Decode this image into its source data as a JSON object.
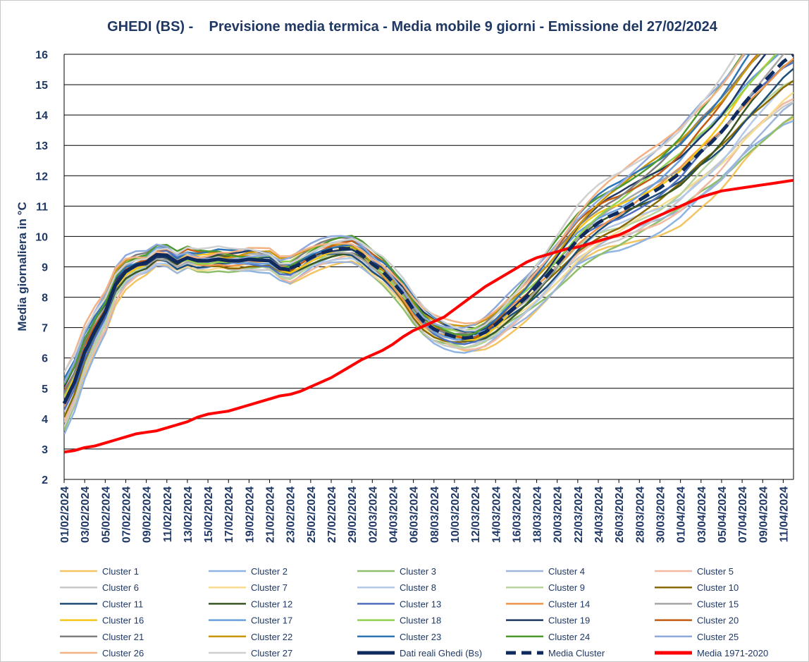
{
  "chart_data": {
    "type": "line",
    "title": "GHEDI (BS) -    Previsione media termica - Media mobile 9 giorni - Emissione del 27/02/2024",
    "ylabel": "Media giornaliera in °C",
    "xlabel": "",
    "ylim": [
      2,
      16
    ],
    "yticks": [
      2,
      3,
      4,
      5,
      6,
      7,
      8,
      9,
      10,
      11,
      12,
      13,
      14,
      15,
      16
    ],
    "grid": "horizontal",
    "legend_placement": "bottom",
    "x_start": "01/02/2024",
    "x_end": "12/04/2024",
    "x_tick_labels": [
      "01/02/2024",
      "03/02/2024",
      "05/02/2024",
      "07/02/2024",
      "09/02/2024",
      "11/02/2024",
      "13/02/2024",
      "15/02/2024",
      "17/02/2024",
      "19/02/2024",
      "21/02/2024",
      "23/02/2024",
      "25/02/2024",
      "27/02/2024",
      "29/02/2024",
      "02/03/2024",
      "04/03/2024",
      "06/03/2024",
      "08/03/2024",
      "10/03/2024",
      "12/03/2024",
      "14/03/2024",
      "16/03/2024",
      "18/03/2024",
      "20/03/2024",
      "22/03/2024",
      "24/03/2024",
      "26/03/2024",
      "28/03/2024",
      "30/03/2024",
      "01/04/2024",
      "03/04/2024",
      "05/04/2024",
      "07/04/2024",
      "09/04/2024",
      "11/04/2024"
    ],
    "observed": {
      "name": "Dati reali Ghedi (Bs)",
      "color": "#0f2a5c",
      "x": [
        "01/02/2024",
        "02/02/2024",
        "03/02/2024",
        "04/02/2024",
        "05/02/2024",
        "06/02/2024",
        "07/02/2024",
        "08/02/2024",
        "09/02/2024",
        "10/02/2024",
        "11/02/2024",
        "12/02/2024",
        "13/02/2024",
        "14/02/2024",
        "15/02/2024",
        "16/02/2024",
        "17/02/2024",
        "18/02/2024",
        "19/02/2024",
        "20/02/2024",
        "21/02/2024",
        "22/02/2024",
        "23/02/2024"
      ],
      "values": [
        4.5,
        5.2,
        6.2,
        6.9,
        7.5,
        8.4,
        8.85,
        9.05,
        9.15,
        9.4,
        9.38,
        9.15,
        9.3,
        9.2,
        9.2,
        9.25,
        9.2,
        9.2,
        9.25,
        9.22,
        9.2,
        8.95,
        8.9
      ]
    },
    "series": [
      {
        "name": "Media Cluster",
        "color": "#0f2a5c",
        "style": "dashed",
        "x": [
          "23/02/2024",
          "24/02/2024",
          "25/02/2024",
          "26/02/2024",
          "27/02/2024",
          "28/02/2024",
          "29/02/2024",
          "01/03/2024",
          "02/03/2024",
          "03/03/2024",
          "04/03/2024",
          "05/03/2024",
          "06/03/2024",
          "07/03/2024",
          "08/03/2024",
          "09/03/2024",
          "10/03/2024",
          "11/03/2024",
          "12/03/2024",
          "13/03/2024",
          "14/03/2024",
          "15/03/2024",
          "16/03/2024",
          "17/03/2024",
          "18/03/2024",
          "19/03/2024",
          "20/03/2024",
          "21/03/2024",
          "22/03/2024",
          "23/03/2024",
          "24/03/2024",
          "25/03/2024",
          "26/03/2024",
          "27/03/2024",
          "28/03/2024",
          "29/03/2024",
          "30/03/2024",
          "31/03/2024",
          "01/04/2024",
          "02/04/2024",
          "03/04/2024",
          "04/04/2024",
          "05/04/2024",
          "06/04/2024",
          "07/04/2024",
          "08/04/2024",
          "09/04/2024",
          "10/04/2024",
          "11/04/2024",
          "12/04/2024"
        ],
        "values": [
          8.95,
          9.1,
          9.3,
          9.45,
          9.55,
          9.6,
          9.6,
          9.4,
          9.1,
          8.85,
          8.5,
          8.1,
          7.6,
          7.2,
          6.95,
          6.8,
          6.7,
          6.65,
          6.7,
          6.85,
          7.1,
          7.4,
          7.7,
          8.0,
          8.35,
          8.7,
          9.1,
          9.5,
          9.9,
          10.2,
          10.45,
          10.65,
          10.8,
          11.0,
          11.2,
          11.4,
          11.6,
          11.85,
          12.1,
          12.45,
          12.8,
          13.1,
          13.45,
          13.85,
          14.3,
          14.7,
          15.05,
          15.4,
          15.75,
          16.0
        ]
      },
      {
        "name": "Media 1971-2020",
        "color": "#ff0000",
        "style": "solid",
        "x": [
          "01/02/2024",
          "02/02/2024",
          "03/02/2024",
          "04/02/2024",
          "05/02/2024",
          "06/02/2024",
          "07/02/2024",
          "08/02/2024",
          "09/02/2024",
          "10/02/2024",
          "11/02/2024",
          "12/02/2024",
          "13/02/2024",
          "14/02/2024",
          "15/02/2024",
          "16/02/2024",
          "17/02/2024",
          "18/02/2024",
          "19/02/2024",
          "20/02/2024",
          "21/02/2024",
          "22/02/2024",
          "23/02/2024",
          "24/02/2024",
          "25/02/2024",
          "26/02/2024",
          "27/02/2024",
          "28/02/2024",
          "29/02/2024",
          "01/03/2024",
          "02/03/2024",
          "03/03/2024",
          "04/03/2024",
          "05/03/2024",
          "06/03/2024",
          "07/03/2024",
          "08/03/2024",
          "09/03/2024",
          "10/03/2024",
          "11/03/2024",
          "12/03/2024",
          "13/03/2024",
          "14/03/2024",
          "15/03/2024",
          "16/03/2024",
          "17/03/2024",
          "18/03/2024",
          "19/03/2024",
          "20/03/2024",
          "21/03/2024",
          "22/03/2024",
          "23/03/2024",
          "24/03/2024",
          "25/03/2024",
          "26/03/2024",
          "27/03/2024",
          "28/03/2024",
          "29/03/2024",
          "30/03/2024",
          "31/03/2024",
          "01/04/2024",
          "02/04/2024",
          "03/04/2024",
          "04/04/2024",
          "05/04/2024",
          "06/04/2024",
          "07/04/2024",
          "08/04/2024",
          "09/04/2024",
          "10/04/2024",
          "11/04/2024",
          "12/04/2024"
        ],
        "values": [
          2.9,
          2.95,
          3.05,
          3.1,
          3.2,
          3.3,
          3.4,
          3.5,
          3.55,
          3.6,
          3.7,
          3.8,
          3.9,
          4.05,
          4.15,
          4.2,
          4.25,
          4.35,
          4.45,
          4.55,
          4.65,
          4.75,
          4.8,
          4.9,
          5.05,
          5.2,
          5.35,
          5.55,
          5.75,
          5.95,
          6.1,
          6.25,
          6.45,
          6.7,
          6.9,
          7.05,
          7.2,
          7.35,
          7.6,
          7.85,
          8.1,
          8.35,
          8.55,
          8.75,
          8.95,
          9.15,
          9.3,
          9.4,
          9.5,
          9.6,
          9.65,
          9.75,
          9.85,
          9.95,
          10.05,
          10.2,
          10.4,
          10.55,
          10.7,
          10.85,
          11.0,
          11.15,
          11.3,
          11.4,
          11.5,
          11.55,
          11.6,
          11.65,
          11.7,
          11.75,
          11.8,
          11.85
        ]
      }
    ],
    "clusters": [
      {
        "name": "Cluster 1",
        "color": "#f3c462"
      },
      {
        "name": "Cluster 2",
        "color": "#8fb4e3"
      },
      {
        "name": "Cluster 3",
        "color": "#8fbf6b"
      },
      {
        "name": "Cluster 4",
        "color": "#9fb6d9"
      },
      {
        "name": "Cluster 5",
        "color": "#f2b8a0"
      },
      {
        "name": "Cluster 6",
        "color": "#c9c9c9"
      },
      {
        "name": "Cluster 7",
        "color": "#f7dc8f"
      },
      {
        "name": "Cluster 8",
        "color": "#b4c9e8"
      },
      {
        "name": "Cluster 9",
        "color": "#b8d49e"
      },
      {
        "name": "Cluster 10",
        "color": "#8a6a00"
      },
      {
        "name": "Cluster 11",
        "color": "#1f4e79"
      },
      {
        "name": "Cluster 12",
        "color": "#375623"
      },
      {
        "name": "Cluster 13",
        "color": "#4f6fbf"
      },
      {
        "name": "Cluster 14",
        "color": "#f0954a"
      },
      {
        "name": "Cluster 15",
        "color": "#a6a6a6"
      },
      {
        "name": "Cluster 16",
        "color": "#f5c518"
      },
      {
        "name": "Cluster 17",
        "color": "#6aa1dd"
      },
      {
        "name": "Cluster 18",
        "color": "#92d050"
      },
      {
        "name": "Cluster 19",
        "color": "#203864"
      },
      {
        "name": "Cluster 20",
        "color": "#c55a11"
      },
      {
        "name": "Cluster 21",
        "color": "#7f7f7f"
      },
      {
        "name": "Cluster 22",
        "color": "#c9960a"
      },
      {
        "name": "Cluster 23",
        "color": "#2e75b6"
      },
      {
        "name": "Cluster 24",
        "color": "#4e9a2e"
      },
      {
        "name": "Cluster 25",
        "color": "#8ea9db"
      },
      {
        "name": "Cluster 26",
        "color": "#f4b183"
      },
      {
        "name": "Cluster 27",
        "color": "#d0d0d0"
      }
    ]
  },
  "legend_extra": [
    {
      "name": "Dati reali Ghedi (Bs)",
      "color": "#0f2a5c",
      "style": "solid"
    },
    {
      "name": "Media Cluster",
      "color": "#0f2a5c",
      "style": "dashed"
    },
    {
      "name": "Media 1971-2020",
      "color": "#ff0000",
      "style": "solid"
    }
  ]
}
